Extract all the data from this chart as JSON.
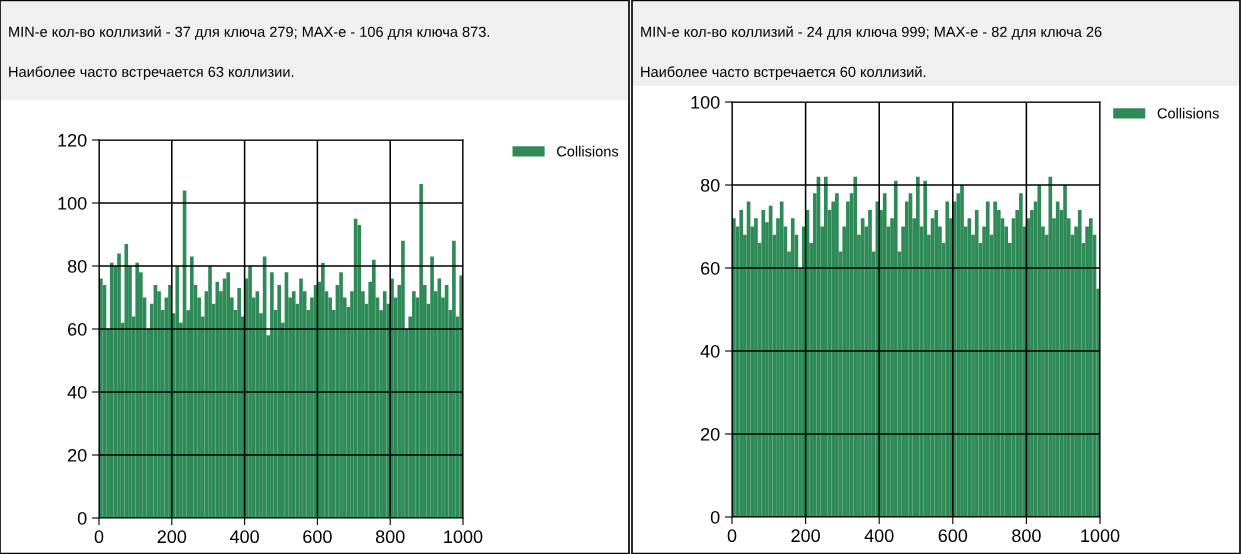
{
  "chart_data": [
    {
      "type": "histogram",
      "annotations": [
        "MIN-е кол-во коллизий - 37 для ключа 279; MAX-е - 106 для ключа 873.",
        "Наиболее часто встречается 63 коллизии."
      ],
      "bins": [
        0,
        10,
        20,
        30,
        40,
        50,
        60,
        70,
        80,
        90,
        100,
        110,
        120,
        130,
        140,
        150,
        160,
        170,
        180,
        190,
        200,
        210,
        220,
        230,
        240,
        250,
        260,
        270,
        280,
        290,
        300,
        310,
        320,
        330,
        340,
        350,
        360,
        370,
        380,
        390,
        400,
        410,
        420,
        430,
        440,
        450,
        460,
        470,
        480,
        490,
        500,
        510,
        520,
        530,
        540,
        550,
        560,
        570,
        580,
        590,
        600,
        610,
        620,
        630,
        640,
        650,
        660,
        670,
        680,
        690,
        700,
        710,
        720,
        730,
        740,
        750,
        760,
        770,
        780,
        790,
        800,
        810,
        820,
        830,
        840,
        850,
        860,
        870,
        880,
        890,
        900,
        910,
        920,
        930,
        940,
        950,
        960,
        970,
        980,
        990,
        1000
      ],
      "series": [
        {
          "name": "Collisions",
          "color": "#2e8b57",
          "values": [
            76,
            74,
            60,
            81,
            80,
            84,
            62,
            87,
            80,
            64,
            81,
            78,
            70,
            60,
            68,
            74,
            72,
            66,
            70,
            74,
            65,
            80,
            62,
            104,
            66,
            83,
            74,
            70,
            64,
            72,
            80,
            68,
            75,
            72,
            76,
            78,
            70,
            66,
            73,
            64,
            76,
            80,
            70,
            72,
            65,
            83,
            58,
            78,
            66,
            74,
            62,
            78,
            70,
            72,
            68,
            76,
            72,
            66,
            70,
            74,
            75,
            81,
            72,
            70,
            66,
            74,
            78,
            70,
            67,
            72,
            95,
            93,
            72,
            68,
            75,
            82,
            70,
            66,
            72,
            68,
            76,
            70,
            74,
            88,
            60,
            64,
            72,
            70,
            106,
            74,
            68,
            83,
            72,
            76,
            70,
            74,
            66,
            88,
            64,
            77
          ]
        }
      ],
      "xlim": [
        0,
        1000
      ],
      "xticks": [
        0,
        200,
        400,
        600,
        800,
        1000
      ],
      "ylim": [
        0,
        120
      ],
      "yticks": [
        0,
        20,
        40,
        60,
        80,
        100,
        120
      ],
      "grid": true,
      "legend": "top right"
    },
    {
      "type": "histogram",
      "annotations": [
        "MIN-е кол-во коллизий - 24 для ключа 999; MAX-е - 82 для ключа 26",
        "Наиболее часто встречается 60 коллизий."
      ],
      "bins": [
        0,
        10,
        20,
        30,
        40,
        50,
        60,
        70,
        80,
        90,
        100,
        110,
        120,
        130,
        140,
        150,
        160,
        170,
        180,
        190,
        200,
        210,
        220,
        230,
        240,
        250,
        260,
        270,
        280,
        290,
        300,
        310,
        320,
        330,
        340,
        350,
        360,
        370,
        380,
        390,
        400,
        410,
        420,
        430,
        440,
        450,
        460,
        470,
        480,
        490,
        500,
        510,
        520,
        530,
        540,
        550,
        560,
        570,
        580,
        590,
        600,
        610,
        620,
        630,
        640,
        650,
        660,
        670,
        680,
        690,
        700,
        710,
        720,
        730,
        740,
        750,
        760,
        770,
        780,
        790,
        800,
        810,
        820,
        830,
        840,
        850,
        860,
        870,
        880,
        890,
        900,
        910,
        920,
        930,
        940,
        950,
        960,
        970,
        980,
        990,
        1000
      ],
      "series": [
        {
          "name": "Collisions",
          "color": "#2e8b57",
          "values": [
            72,
            70,
            74,
            68,
            76,
            70,
            72,
            66,
            74,
            71,
            75,
            68,
            72,
            76,
            70,
            64,
            72,
            68,
            60,
            70,
            74,
            66,
            78,
            82,
            70,
            82,
            74,
            76,
            78,
            64,
            70,
            76,
            78,
            82,
            68,
            72,
            70,
            74,
            64,
            76,
            74,
            78,
            70,
            72,
            81,
            64,
            70,
            76,
            78,
            72,
            82,
            70,
            81,
            68,
            72,
            74,
            70,
            66,
            76,
            72,
            76,
            78,
            80,
            70,
            72,
            68,
            74,
            66,
            70,
            76,
            68,
            76,
            74,
            72,
            70,
            66,
            72,
            74,
            78,
            70,
            72,
            74,
            76,
            80,
            70,
            68,
            82,
            72,
            76,
            74,
            80,
            72,
            68,
            70,
            74,
            66,
            70,
            72,
            68,
            55
          ]
        }
      ],
      "xlim": [
        0,
        1000
      ],
      "xticks": [
        0,
        200,
        400,
        600,
        800,
        1000
      ],
      "ylim": [
        0,
        100
      ],
      "yticks": [
        0,
        20,
        40,
        60,
        80,
        100
      ],
      "grid": true,
      "legend": "top right"
    }
  ]
}
